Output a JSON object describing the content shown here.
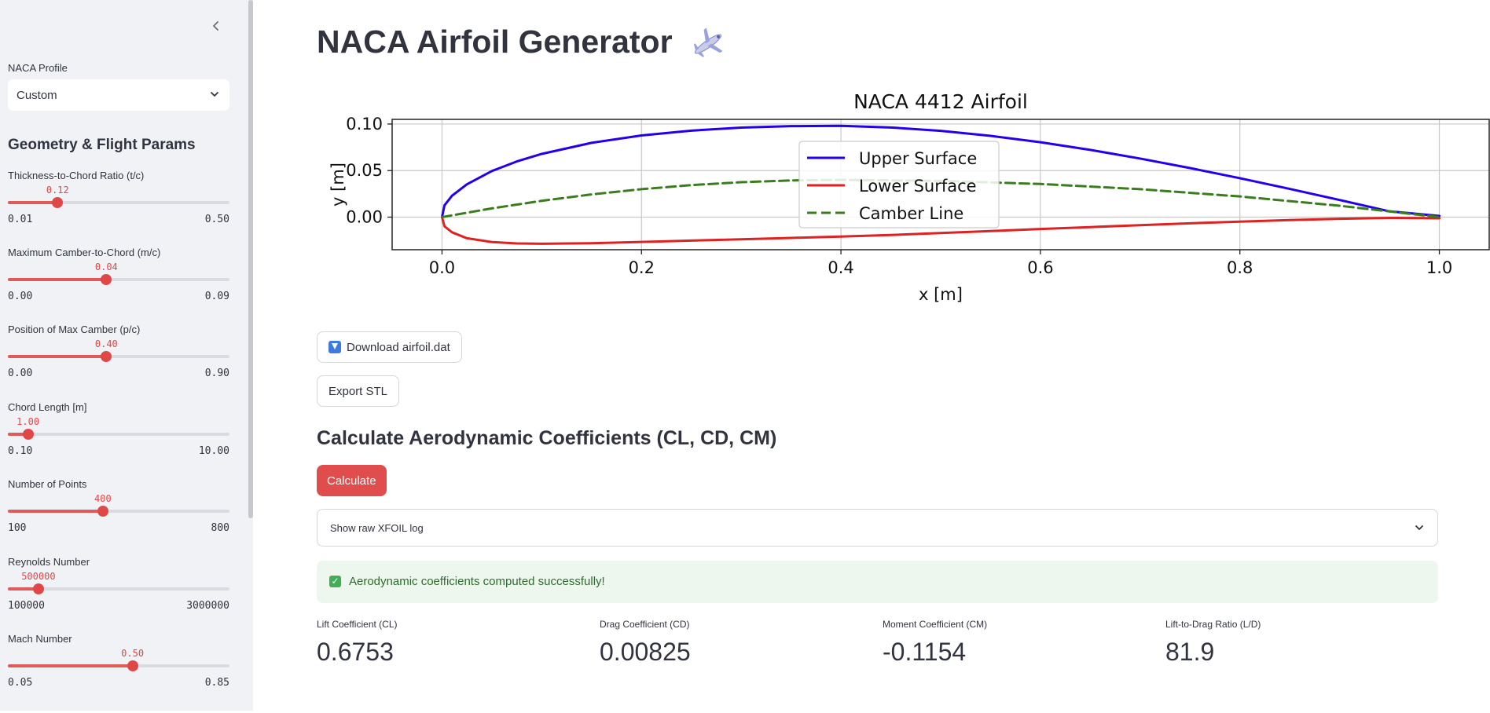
{
  "sidebar": {
    "profile_label": "NACA Profile",
    "profile_value": "Custom",
    "section_heading": "Geometry & Flight Params",
    "sliders": [
      {
        "label": "Thickness-to-Chord Ratio (t/c)",
        "value": "0.12",
        "min": "0.01",
        "max": "0.50",
        "num": 0.12,
        "lo": 0.01,
        "hi": 0.5
      },
      {
        "label": "Maximum Camber-to-Chord (m/c)",
        "value": "0.04",
        "min": "0.00",
        "max": "0.09",
        "num": 0.04,
        "lo": 0.0,
        "hi": 0.09
      },
      {
        "label": "Position of Max Camber (p/c)",
        "value": "0.40",
        "min": "0.00",
        "max": "0.90",
        "num": 0.4,
        "lo": 0.0,
        "hi": 0.9
      },
      {
        "label": "Chord Length [m]",
        "value": "1.00",
        "min": "0.10",
        "max": "10.00",
        "num": 1.0,
        "lo": 0.1,
        "hi": 10.0
      },
      {
        "label": "Number of Points",
        "value": "400",
        "min": "100",
        "max": "800",
        "num": 400,
        "lo": 100,
        "hi": 800
      },
      {
        "label": "Reynolds Number",
        "value": "500000",
        "min": "100000",
        "max": "3000000",
        "num": 500000,
        "lo": 100000,
        "hi": 3000000
      },
      {
        "label": "Mach Number",
        "value": "0.50",
        "min": "0.05",
        "max": "0.85",
        "num": 0.5,
        "lo": 0.05,
        "hi": 0.85
      }
    ]
  },
  "main": {
    "title": "NACA Airfoil Generator",
    "title_icon": "airplane-icon",
    "download_label": "Download airfoil.dat",
    "export_label": "Export STL",
    "calc_heading": "Calculate Aerodynamic Coefficients (CL, CD, CM)",
    "calc_label": "Calculate",
    "expander_label": "Show raw XFOIL log",
    "success_message": "Aerodynamic coefficients computed successfully!",
    "metrics": [
      {
        "label": "Lift Coefficient (CL)",
        "value": "0.6753"
      },
      {
        "label": "Drag Coefficient (CD)",
        "value": "0.00825"
      },
      {
        "label": "Moment Coefficient (CM)",
        "value": "-0.1154"
      },
      {
        "label": "Lift-to-Drag Ratio (L/D)",
        "value": "81.9"
      }
    ]
  },
  "colors": {
    "accent": "#e04848",
    "upper": "#2200ee",
    "lower": "#dd2222",
    "camber": "#3a7d1e"
  },
  "chart_data": {
    "type": "line",
    "title": "NACA 4412 Airfoil",
    "xlabel": "x [m]",
    "ylabel": "y [m]",
    "xlim": [
      -0.05,
      1.05
    ],
    "ylim": [
      -0.035,
      0.105
    ],
    "xticks": [
      "0.0",
      "0.2",
      "0.4",
      "0.6",
      "0.8",
      "1.0"
    ],
    "yticks": [
      "0.00",
      "0.05",
      "0.10"
    ],
    "grid": true,
    "legend_position": "upper-center",
    "series": [
      {
        "name": "Upper Surface",
        "style": "solid",
        "color": "#2200ee",
        "x": [
          0.0,
          0.0025,
          0.01,
          0.025,
          0.05,
          0.075,
          0.1,
          0.15,
          0.2,
          0.25,
          0.3,
          0.35,
          0.4,
          0.45,
          0.5,
          0.55,
          0.6,
          0.65,
          0.7,
          0.75,
          0.8,
          0.85,
          0.9,
          0.95,
          1.0
        ],
        "y": [
          0.0,
          0.0127,
          0.0229,
          0.0353,
          0.0495,
          0.0598,
          0.0679,
          0.0798,
          0.0877,
          0.0929,
          0.0961,
          0.0977,
          0.098,
          0.0963,
          0.0927,
          0.0873,
          0.0804,
          0.0722,
          0.0629,
          0.0527,
          0.0418,
          0.0303,
          0.0184,
          0.0062,
          0.0013
        ]
      },
      {
        "name": "Lower Surface",
        "style": "solid",
        "color": "#dd2222",
        "x": [
          0.0,
          0.0025,
          0.01,
          0.025,
          0.05,
          0.075,
          0.1,
          0.15,
          0.2,
          0.25,
          0.3,
          0.35,
          0.4,
          0.45,
          0.5,
          0.55,
          0.6,
          0.65,
          0.7,
          0.75,
          0.8,
          0.85,
          0.9,
          0.95,
          1.0
        ],
        "y": [
          0.0,
          -0.0099,
          -0.0163,
          -0.0227,
          -0.0268,
          -0.0282,
          -0.0286,
          -0.028,
          -0.0267,
          -0.0252,
          -0.0238,
          -0.0223,
          -0.0209,
          -0.0192,
          -0.0171,
          -0.015,
          -0.0128,
          -0.0107,
          -0.0086,
          -0.0066,
          -0.0048,
          -0.0032,
          -0.0018,
          -0.0008,
          -0.0013
        ]
      },
      {
        "name": "Camber Line",
        "style": "dashed",
        "color": "#3a7d1e",
        "x": [
          0.0,
          0.05,
          0.1,
          0.15,
          0.2,
          0.25,
          0.3,
          0.35,
          0.4,
          0.5,
          0.6,
          0.7,
          0.8,
          0.9,
          1.0
        ],
        "y": [
          0.0,
          0.0094,
          0.0175,
          0.0244,
          0.03,
          0.0344,
          0.0375,
          0.0394,
          0.04,
          0.0389,
          0.0356,
          0.03,
          0.0222,
          0.0122,
          0.0
        ]
      }
    ]
  }
}
